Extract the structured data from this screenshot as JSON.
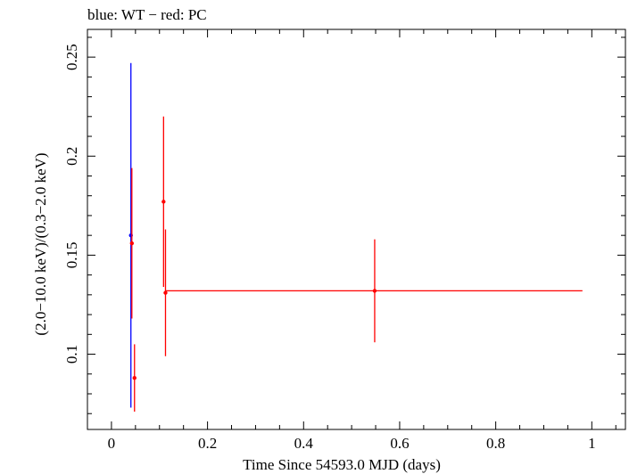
{
  "chart_data": {
    "type": "scatter",
    "title": "blue: WT − red: PC",
    "xlabel": "Time Since 54593.0 MJD (days)",
    "ylabel": "(2.0−10.0 keV)/(0.3−2.0 keV)",
    "xlim": [
      -0.05,
      1.07
    ],
    "ylim": [
      0.062,
      0.264
    ],
    "x_ticks": [
      0,
      0.2,
      0.4,
      0.6,
      0.8,
      1
    ],
    "x_tick_labels": [
      "0",
      "0.2",
      "0.4",
      "0.6",
      "0.8",
      "1"
    ],
    "y_ticks": [
      0.1,
      0.15,
      0.2,
      0.25
    ],
    "y_tick_labels": [
      "0.1",
      "0.15",
      "0.2",
      "0.25"
    ],
    "series": [
      {
        "name": "WT",
        "color": "#0000ff",
        "points": [
          {
            "x": 0.0405,
            "xerr_lo": 0.0,
            "xerr_hi": 0.0,
            "y": 0.16,
            "yerr_lo": 0.073,
            "yerr_hi": 0.247
          }
        ]
      },
      {
        "name": "PC",
        "color": "#ff0000",
        "points": [
          {
            "x": 0.0425,
            "xerr_lo": 0.0,
            "xerr_hi": 0.0,
            "y": 0.156,
            "yerr_lo": 0.118,
            "yerr_hi": 0.194
          },
          {
            "x": 0.048,
            "xerr_lo": 0.0,
            "xerr_hi": 0.0,
            "y": 0.088,
            "yerr_lo": 0.071,
            "yerr_hi": 0.105
          },
          {
            "x": 0.1085,
            "xerr_lo": 0.0,
            "xerr_hi": 0.0,
            "y": 0.177,
            "yerr_lo": 0.134,
            "yerr_hi": 0.22
          },
          {
            "x": 0.1125,
            "xerr_lo": 0.0,
            "xerr_hi": 0.0,
            "y": 0.131,
            "yerr_lo": 0.099,
            "yerr_hi": 0.163
          },
          {
            "x": 0.548,
            "xerr_lo": 0.4355,
            "xerr_hi": 0.4325,
            "y": 0.132,
            "yerr_lo": 0.106,
            "yerr_hi": 0.158
          }
        ]
      }
    ]
  }
}
